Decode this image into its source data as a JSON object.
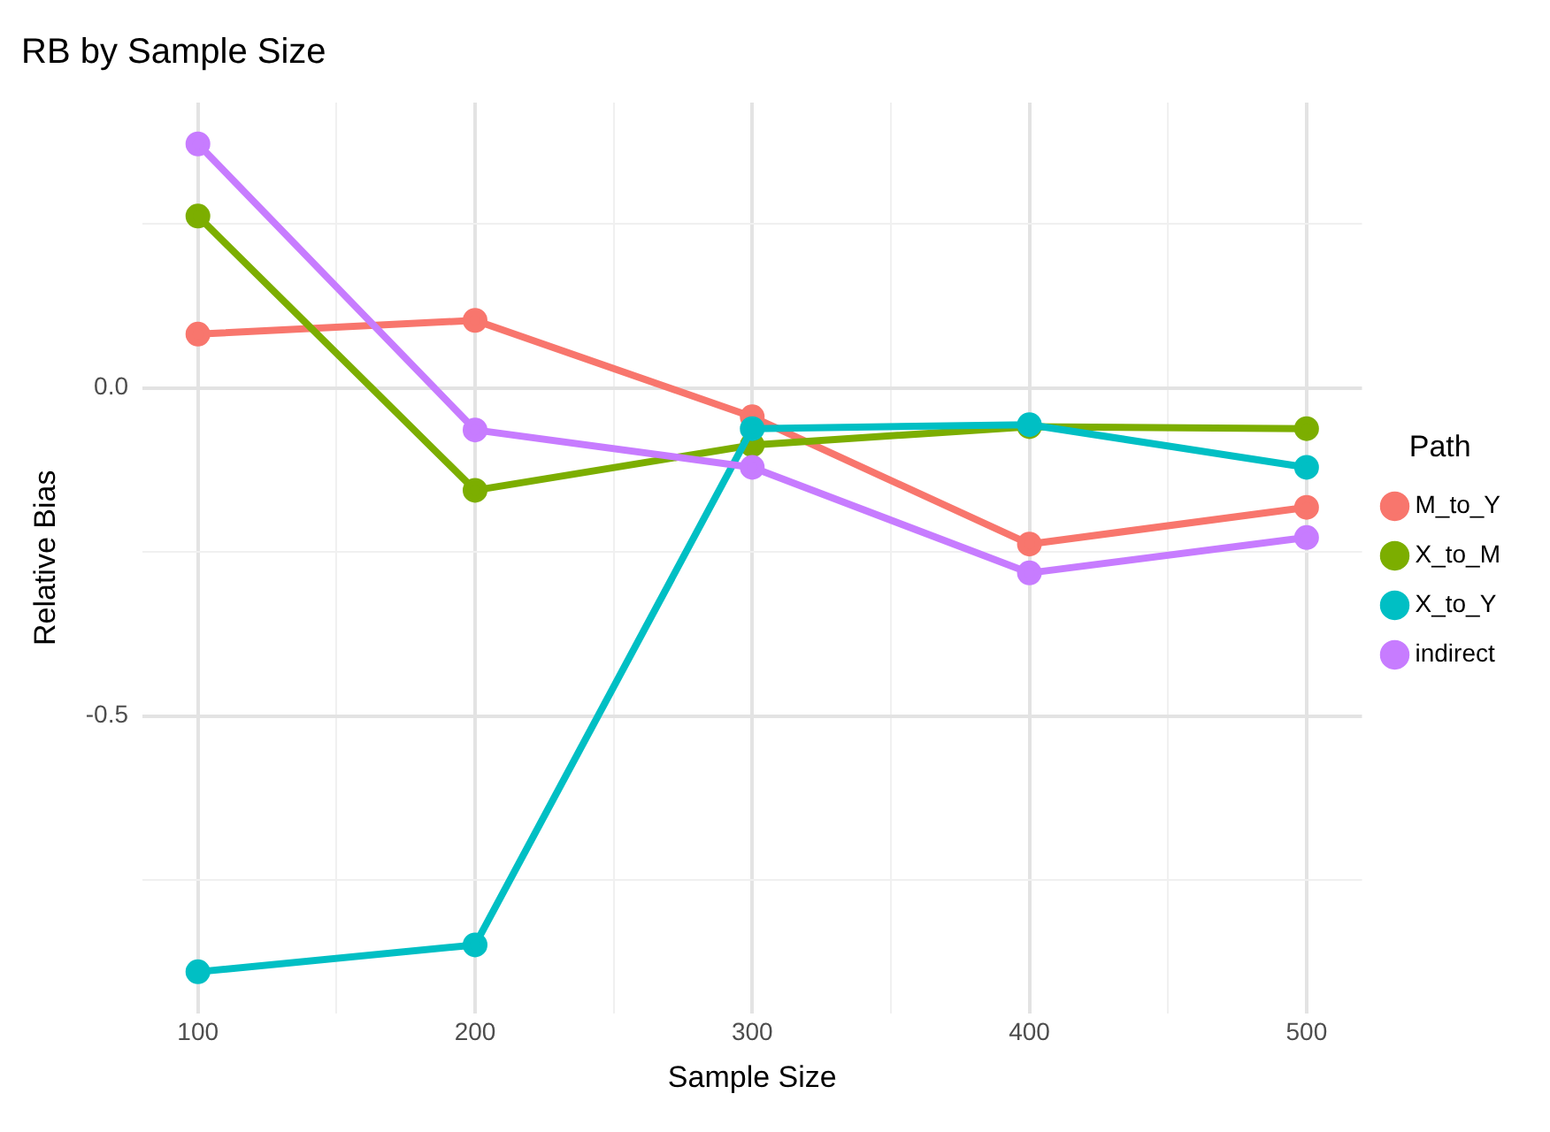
{
  "chart_data": {
    "type": "line",
    "title": "RB by Sample Size",
    "xlabel": "Sample Size",
    "ylabel": "Relative Bias",
    "legend_title": "Path",
    "x": [
      100,
      200,
      300,
      400,
      500
    ],
    "series": [
      {
        "name": "M_to_Y",
        "color": "#f8766d",
        "values": [
          0.082,
          0.103,
          -0.044,
          -0.238,
          -0.182
        ]
      },
      {
        "name": "X_to_M",
        "color": "#7cae00",
        "values": [
          0.262,
          -0.156,
          -0.087,
          -0.059,
          -0.062
        ]
      },
      {
        "name": "X_to_Y",
        "color": "#00bfc4",
        "values": [
          -0.89,
          -0.849,
          -0.062,
          -0.056,
          -0.121
        ]
      },
      {
        "name": "indirect",
        "color": "#c77cff",
        "values": [
          0.372,
          -0.064,
          -0.121,
          -0.282,
          -0.228
        ]
      }
    ],
    "xlim": [
      80,
      520
    ],
    "xticks": [
      100,
      {
        "value": 150,
        "label": null
      },
      200,
      {
        "value": 250,
        "label": null
      },
      300,
      {
        "value": 350,
        "label": null
      },
      400,
      {
        "value": 450,
        "label": null
      },
      500
    ],
    "ylim": [
      -0.953,
      0.435
    ],
    "yticks": [
      {
        "value": -0.75,
        "label": null
      },
      {
        "value": -0.5,
        "label": "-0.5"
      },
      {
        "value": -0.25,
        "label": null
      },
      {
        "value": 0,
        "label": "0.0"
      },
      {
        "value": 0.25,
        "label": null
      }
    ],
    "grid": true,
    "legend": "right",
    "marker": "circle",
    "line_style": "solid"
  }
}
